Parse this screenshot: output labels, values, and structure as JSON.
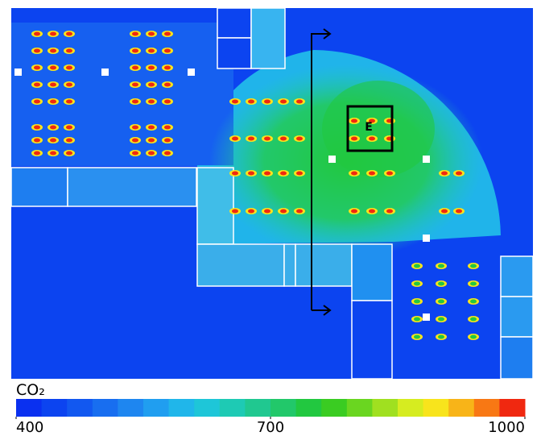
{
  "annotation": "E",
  "colorbar": {
    "title": "CO₂",
    "min": 400,
    "max": 1000,
    "ticks": [
      400,
      700,
      1000
    ],
    "colors": [
      "#0a30f0",
      "#0c44f0",
      "#1258f0",
      "#186ef0",
      "#1e86f0",
      "#209ef0",
      "#20b6ea",
      "#1ec6d8",
      "#1ecab4",
      "#20c890",
      "#22c86a",
      "#22c840",
      "#3acc22",
      "#6ad620",
      "#a0e020",
      "#d6ec20",
      "#f8e41c",
      "#f8b418",
      "#f87814",
      "#f02810"
    ]
  }
}
